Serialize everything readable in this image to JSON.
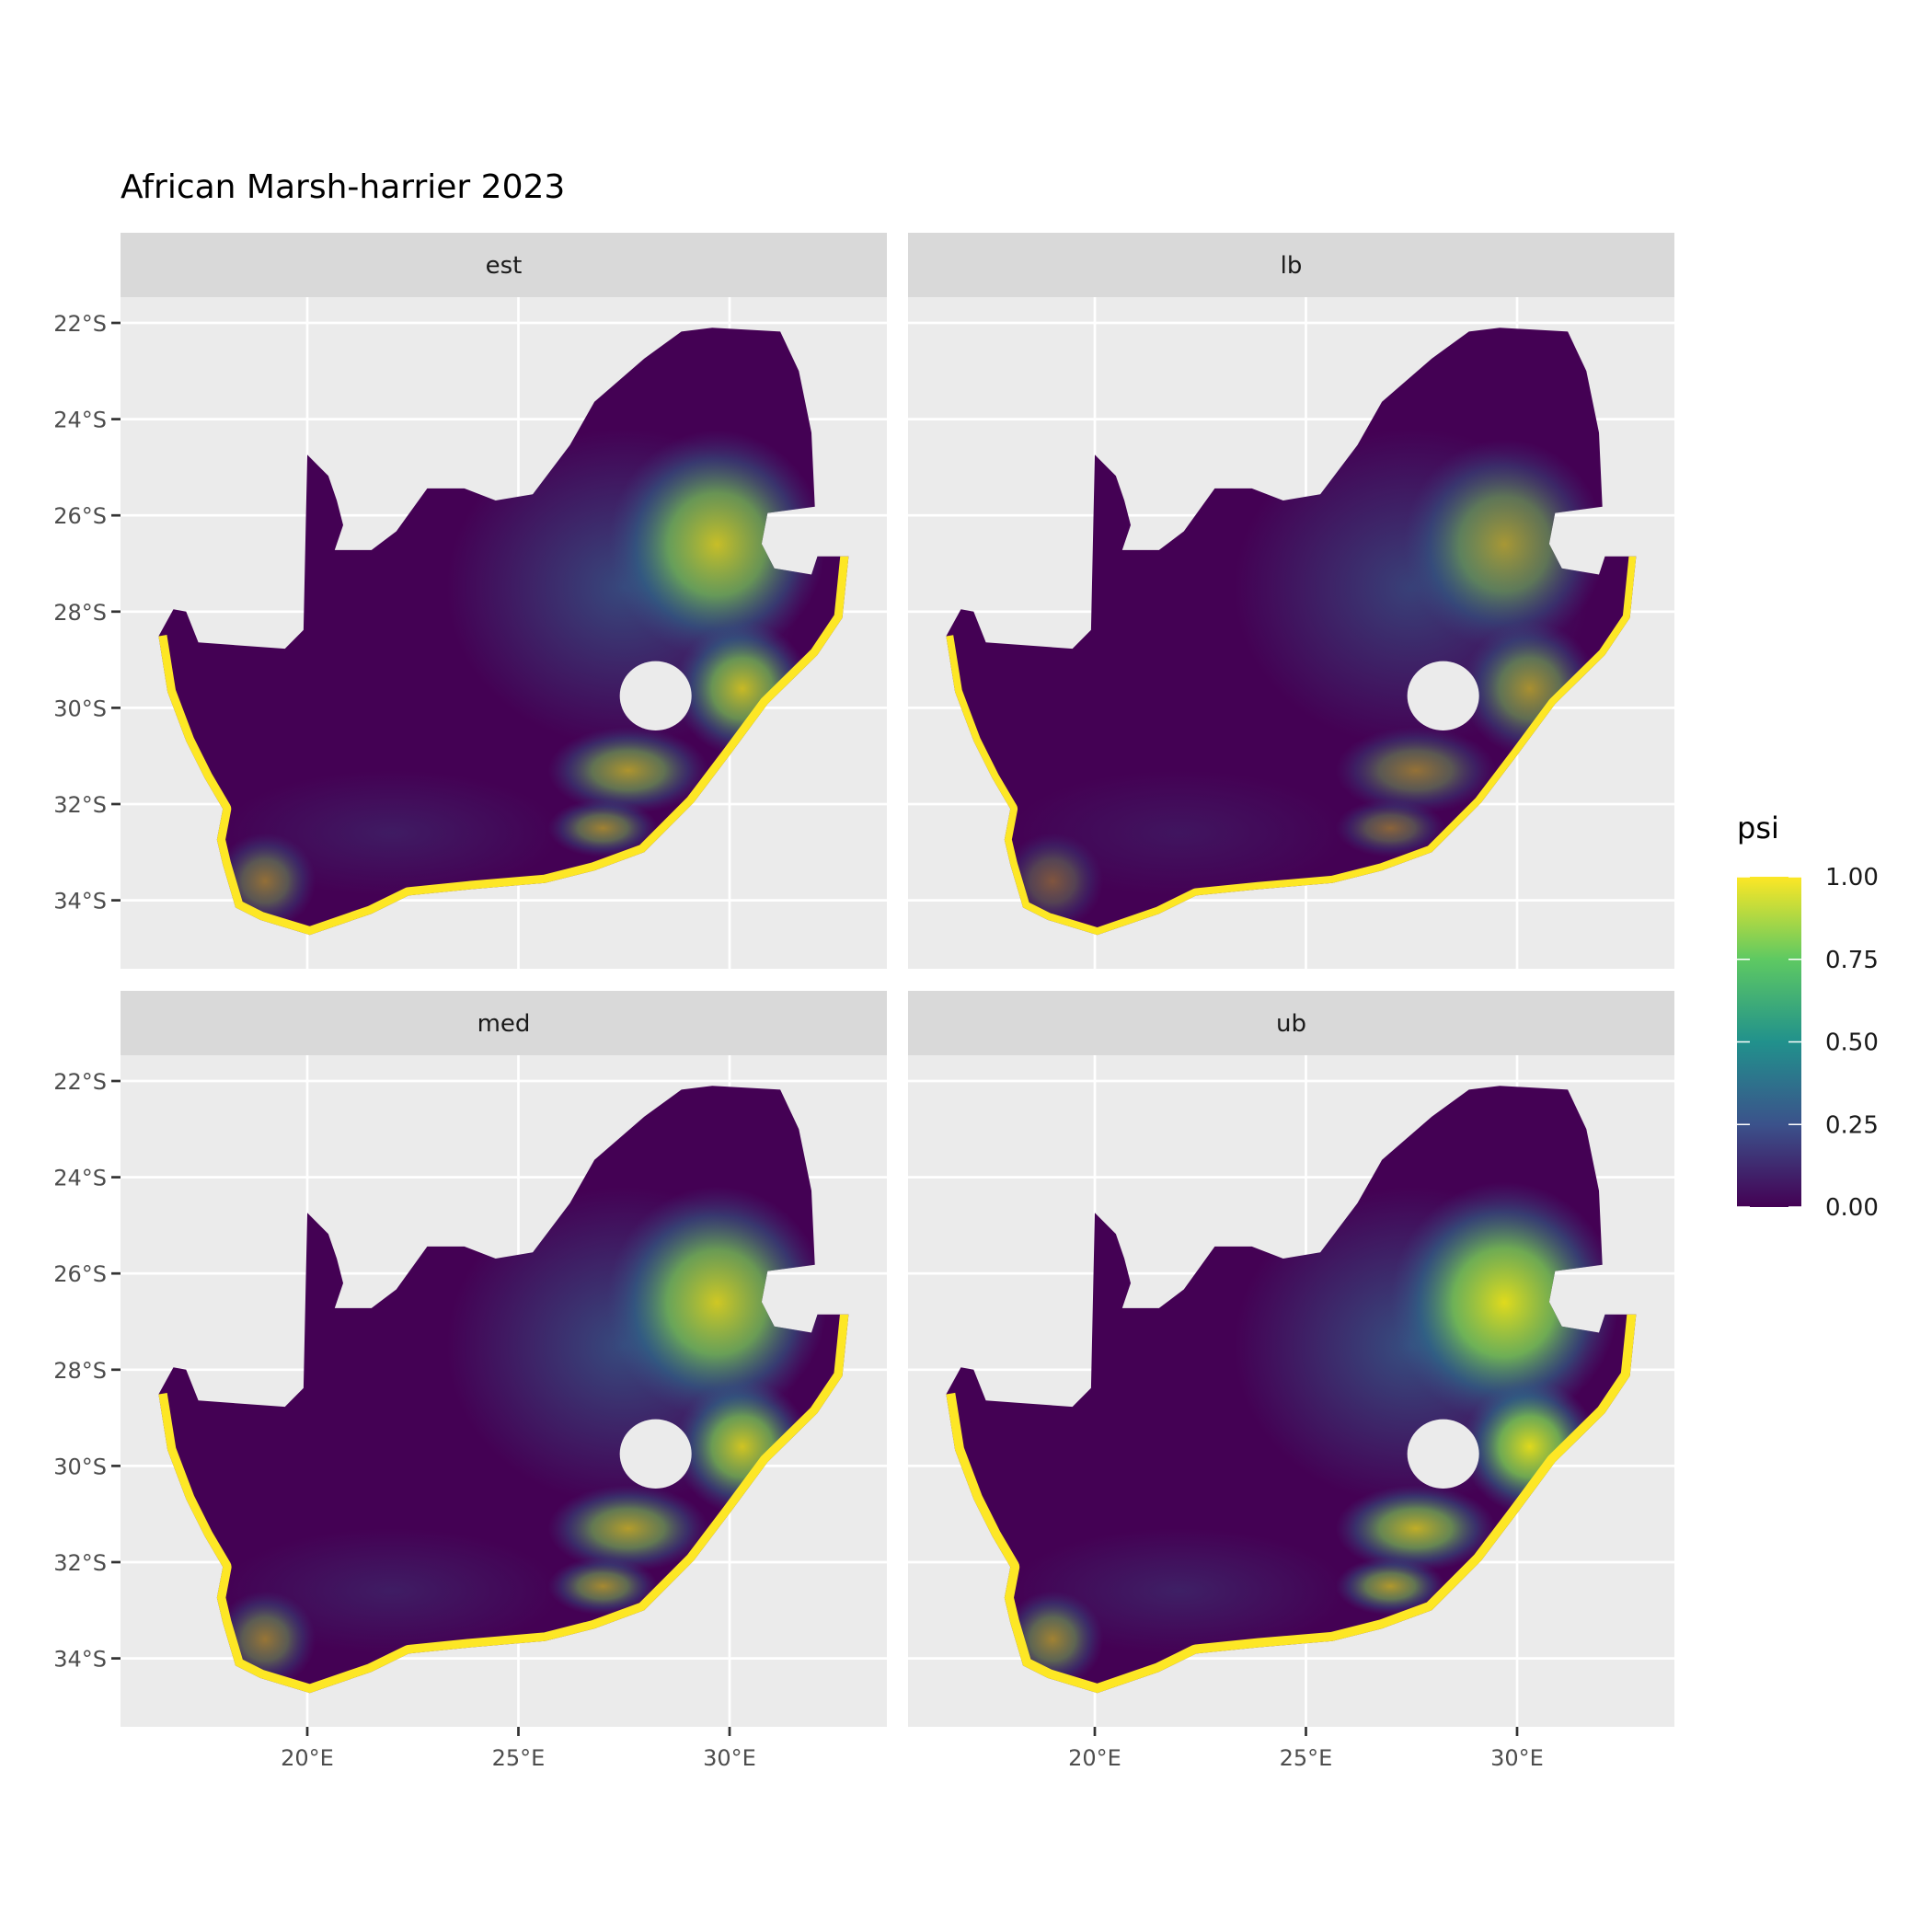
{
  "chart_data": {
    "type": "heatmap",
    "title": "African Marsh-harrier 2023",
    "facets": [
      "est",
      "lb",
      "med",
      "ub"
    ],
    "x_ticks": [
      {
        "value": 20,
        "label": "20°E"
      },
      {
        "value": 25,
        "label": "25°E"
      },
      {
        "value": 30,
        "label": "30°E"
      }
    ],
    "y_ticks": [
      {
        "value": -22,
        "label": "22°S"
      },
      {
        "value": -24,
        "label": "24°S"
      },
      {
        "value": -26,
        "label": "26°S"
      },
      {
        "value": -28,
        "label": "28°S"
      },
      {
        "value": -30,
        "label": "30°S"
      },
      {
        "value": -32,
        "label": "32°S"
      },
      {
        "value": -34,
        "label": "34°S"
      }
    ],
    "xlim": [
      15.6,
      33.7
    ],
    "ylim": [
      -35.5,
      -21.5
    ],
    "legend": {
      "title": "psi",
      "position": "right",
      "range": [
        0,
        1
      ],
      "breaks": [
        {
          "value": 1.0,
          "label": "1.00"
        },
        {
          "value": 0.75,
          "label": "0.75"
        },
        {
          "value": 0.5,
          "label": "0.50"
        },
        {
          "value": 0.25,
          "label": "0.25"
        },
        {
          "value": 0.0,
          "label": "0.00"
        }
      ],
      "colors": [
        "#440154",
        "#3b528b",
        "#21918c",
        "#5ec962",
        "#fde725"
      ]
    },
    "facet_intensity": {
      "est": 0.85,
      "lb": 0.65,
      "med": 0.9,
      "ub": 1.0
    }
  }
}
